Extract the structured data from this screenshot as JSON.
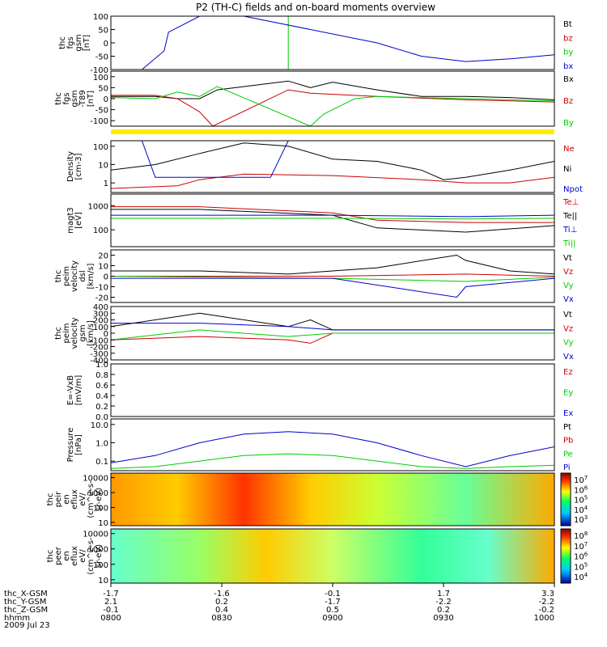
{
  "title": "P2 (TH-C) fields and on-board moments overview",
  "date": "2009 Jul 23",
  "colors": {
    "black": "#000000",
    "red": "#cc0000",
    "green": "#00cc00",
    "blue": "#0000cc",
    "yellow": "#ffee00"
  },
  "chart_data": [
    {
      "type": "line",
      "panel": "fgs_gsm",
      "ylabel": [
        "thc",
        "fgs",
        "gsm",
        "[nT]"
      ],
      "ylim": [
        -100,
        100
      ],
      "yticks": [
        "100",
        "50",
        "0",
        "-50",
        "-100"
      ],
      "series": [
        {
          "name": "Bt",
          "color": "black",
          "x": [],
          "y": []
        },
        {
          "name": "bz",
          "color": "red",
          "x": [],
          "y": []
        },
        {
          "name": "by",
          "color": "green",
          "x": [
            0.4,
            0.4
          ],
          "y": [
            -100,
            100
          ]
        },
        {
          "name": "bx",
          "color": "blue",
          "x": [
            0.07,
            0.12,
            0.13,
            0.2,
            0.3,
            0.6,
            0.7,
            0.8,
            0.9,
            1.0
          ],
          "y": [
            -100,
            -30,
            40,
            100,
            100,
            0,
            -50,
            -70,
            -60,
            -45
          ]
        }
      ]
    },
    {
      "type": "line",
      "panel": "fgs_gsm_t89",
      "ylabel": [
        "thc",
        "fgs",
        "gsm",
        "-T89",
        "[nT]"
      ],
      "ylim": [
        -125,
        125
      ],
      "yticks": [
        "100",
        "50",
        "0",
        "-50",
        "-100"
      ],
      "series": [
        {
          "name": "Bx",
          "color": "black",
          "x": [
            0.0,
            0.1,
            0.15,
            0.2,
            0.24,
            0.4,
            0.45,
            0.5,
            0.6,
            0.7,
            0.8,
            0.9,
            1.0
          ],
          "y": [
            10,
            10,
            0,
            0,
            40,
            80,
            50,
            75,
            40,
            10,
            10,
            5,
            -5
          ]
        },
        {
          "name": "Bz",
          "color": "red",
          "x": [
            0.0,
            0.1,
            0.15,
            0.2,
            0.23,
            0.4,
            0.45,
            0.6,
            0.8,
            1.0
          ],
          "y": [
            15,
            15,
            0,
            -60,
            -125,
            40,
            25,
            10,
            -5,
            -15
          ]
        },
        {
          "name": "By",
          "color": "green",
          "x": [
            0.0,
            0.1,
            0.15,
            0.2,
            0.24,
            0.45,
            0.48,
            0.55,
            0.6,
            0.8,
            1.0
          ],
          "y": [
            5,
            0,
            30,
            10,
            55,
            -125,
            -70,
            0,
            10,
            0,
            -10
          ]
        }
      ]
    },
    {
      "type": "line",
      "panel": "density",
      "ylabel": [
        "Density",
        "[cm-3]"
      ],
      "yscale": "log",
      "ylim": [
        0.3,
        200
      ],
      "yticks": [
        "100",
        "10",
        "1"
      ],
      "series": [
        {
          "name": "Ne",
          "color": "red",
          "x": [
            0.0,
            0.15,
            0.2,
            0.3,
            0.5,
            0.7,
            0.8,
            0.9,
            1.0
          ],
          "y": [
            0.5,
            0.7,
            1.5,
            3,
            2.5,
            1.5,
            1,
            1,
            2
          ]
        },
        {
          "name": "Ni",
          "color": "black",
          "x": [
            0.0,
            0.1,
            0.2,
            0.3,
            0.4,
            0.5,
            0.6,
            0.7,
            0.75,
            0.8,
            0.9,
            1.0
          ],
          "y": [
            5,
            10,
            40,
            150,
            100,
            20,
            15,
            5,
            1.5,
            2,
            5,
            15
          ]
        },
        {
          "name": "Npot",
          "color": "blue",
          "x": [
            0.07,
            0.1,
            0.36,
            0.4
          ],
          "y": [
            200,
            2,
            2,
            200
          ]
        }
      ]
    },
    {
      "type": "line",
      "panel": "temperature",
      "ylabel": [
        "magt3",
        "[eV]"
      ],
      "yscale": "log",
      "ylim": [
        20,
        3000
      ],
      "yticks": [
        "1000",
        "100"
      ],
      "series": [
        {
          "name": "Te⊥",
          "color": "red",
          "x": [
            0.0,
            0.2,
            0.5,
            0.6,
            0.8,
            1.0
          ],
          "y": [
            900,
            900,
            500,
            250,
            200,
            200
          ]
        },
        {
          "name": "Te||",
          "color": "black",
          "x": [
            0.0,
            0.2,
            0.5,
            0.6,
            0.8,
            1.0
          ],
          "y": [
            700,
            700,
            400,
            120,
            80,
            150
          ]
        },
        {
          "name": "Ti⊥",
          "color": "blue",
          "x": [
            0.0,
            0.5,
            0.8,
            1.0
          ],
          "y": [
            400,
            400,
            350,
            400
          ]
        },
        {
          "name": "Ti||",
          "color": "green",
          "x": [
            0.0,
            0.5,
            0.8,
            1.0
          ],
          "y": [
            300,
            300,
            280,
            300
          ]
        }
      ]
    },
    {
      "type": "line",
      "panel": "velocity_dsl",
      "ylabel": [
        "thc",
        "peim",
        "velocity",
        "dsl",
        "[km/s]"
      ],
      "ylim": [
        -25,
        25
      ],
      "yticks": [
        "20",
        "10",
        "0",
        "-10",
        "-20"
      ],
      "series": [
        {
          "name": "Vt",
          "color": "black",
          "x": [
            0.0,
            0.2,
            0.4,
            0.6,
            0.78,
            0.8,
            0.9,
            1.0
          ],
          "y": [
            5,
            5,
            2,
            8,
            20,
            15,
            5,
            2
          ]
        },
        {
          "name": "Vz",
          "color": "red",
          "x": [
            0.0,
            0.5,
            0.8,
            1.0
          ],
          "y": [
            0,
            0,
            2,
            0
          ]
        },
        {
          "name": "Vy",
          "color": "green",
          "x": [
            0.0,
            0.5,
            0.8,
            1.0
          ],
          "y": [
            0,
            -2,
            -5,
            -1
          ]
        },
        {
          "name": "Vx",
          "color": "blue",
          "x": [
            0.0,
            0.5,
            0.78,
            0.8,
            1.0
          ],
          "y": [
            -2,
            -2,
            -20,
            -10,
            -2
          ]
        }
      ]
    },
    {
      "type": "line",
      "panel": "velocity_gsm",
      "ylabel": [
        "thc",
        "peim",
        "velocity",
        "gsm",
        "[km/s]"
      ],
      "ylim": [
        -400,
        400
      ],
      "yticks": [
        "400",
        "300",
        "200",
        "100",
        "0",
        "-100",
        "-200",
        "-300",
        "-400"
      ],
      "series": [
        {
          "name": "Vt",
          "color": "black",
          "x": [
            0.0,
            0.2,
            0.4,
            0.45,
            0.5,
            1.0
          ],
          "y": [
            100,
            300,
            100,
            200,
            50,
            50
          ]
        },
        {
          "name": "Vz",
          "color": "red",
          "x": [
            0.0,
            0.2,
            0.4,
            0.45,
            0.5,
            1.0
          ],
          "y": [
            -100,
            -50,
            -100,
            -150,
            0,
            0
          ]
        },
        {
          "name": "Vy",
          "color": "green",
          "x": [
            0.0,
            0.2,
            0.4,
            0.5,
            1.0
          ],
          "y": [
            -100,
            50,
            -50,
            0,
            0
          ]
        },
        {
          "name": "Vx",
          "color": "blue",
          "x": [
            0.0,
            0.2,
            0.4,
            0.5,
            1.0
          ],
          "y": [
            150,
            150,
            100,
            50,
            50
          ]
        }
      ]
    },
    {
      "type": "line",
      "panel": "efield",
      "ylabel": [
        "E=-VxB",
        "[mV/m]"
      ],
      "ylim": [
        0,
        1
      ],
      "yticks": [
        "1.0",
        "0.8",
        "0.6",
        "0.4",
        "0.2",
        "0.0"
      ],
      "series": [
        {
          "name": "Ez",
          "color": "red",
          "x": [],
          "y": []
        },
        {
          "name": "Ey",
          "color": "green",
          "x": [],
          "y": []
        },
        {
          "name": "Ex",
          "color": "blue",
          "x": [],
          "y": []
        }
      ]
    },
    {
      "type": "line",
      "panel": "pressure",
      "ylabel": [
        "Pressure",
        "[nPa]"
      ],
      "yscale": "log",
      "ylim": [
        0.03,
        20
      ],
      "yticks": [
        "10.0",
        "1.0",
        "0.1"
      ],
      "series": [
        {
          "name": "Pt",
          "color": "black",
          "x": [],
          "y": []
        },
        {
          "name": "Pb",
          "color": "red",
          "x": [],
          "y": []
        },
        {
          "name": "Pe",
          "color": "green",
          "x": [
            0.0,
            0.1,
            0.2,
            0.3,
            0.4,
            0.5,
            0.6,
            0.7,
            0.8,
            0.9,
            1.0
          ],
          "y": [
            0.04,
            0.05,
            0.1,
            0.2,
            0.25,
            0.2,
            0.1,
            0.05,
            0.04,
            0.05,
            0.06
          ]
        },
        {
          "name": "Pi",
          "color": "blue",
          "x": [
            0.0,
            0.1,
            0.2,
            0.3,
            0.4,
            0.5,
            0.6,
            0.7,
            0.8,
            0.9,
            1.0
          ],
          "y": [
            0.08,
            0.2,
            1,
            3,
            4,
            3,
            1,
            0.2,
            0.05,
            0.2,
            0.6
          ]
        }
      ]
    },
    {
      "type": "heatmap",
      "panel": "peir_eflux",
      "ylabel": [
        "thc",
        "peir",
        "en",
        "eflux",
        "eV/",
        "(cm^2-s-",
        "sr-eV)"
      ],
      "yscale": "log",
      "ylim": [
        6,
        20000
      ],
      "yticks": [
        "10000",
        "1000",
        "100",
        "10"
      ],
      "colorbar": [
        "10^7",
        "10^6",
        "10^5",
        "10^4",
        "10^3"
      ]
    },
    {
      "type": "heatmap",
      "panel": "peer_eflux",
      "ylabel": [
        "thc",
        "peer",
        "en",
        "eflux",
        "eV/",
        "(cm^2-s-",
        "sr-eV)"
      ],
      "yscale": "log",
      "ylim": [
        6,
        20000
      ],
      "yticks": [
        "10000",
        "1000",
        "100",
        "10"
      ],
      "colorbar": [
        "10^8",
        "10^7",
        "10^6",
        "10^5",
        "10^4"
      ]
    }
  ],
  "xaxis": {
    "rows": [
      {
        "label": "thc_X-GSM",
        "values": [
          "-1.7",
          "-1.6",
          "-0.1",
          "1.7",
          "3.3"
        ]
      },
      {
        "label": "thc_Y-GSM",
        "values": [
          "2.1",
          "0.2",
          "-1.7",
          "-2.2",
          "-2.2"
        ]
      },
      {
        "label": "thc_Z-GSM",
        "values": [
          "-0.1",
          "0.4",
          "0.5",
          "0.2",
          "-0.2"
        ]
      },
      {
        "label": "hhmm",
        "values": [
          "0800",
          "0830",
          "0900",
          "0930",
          "1000"
        ]
      }
    ]
  }
}
